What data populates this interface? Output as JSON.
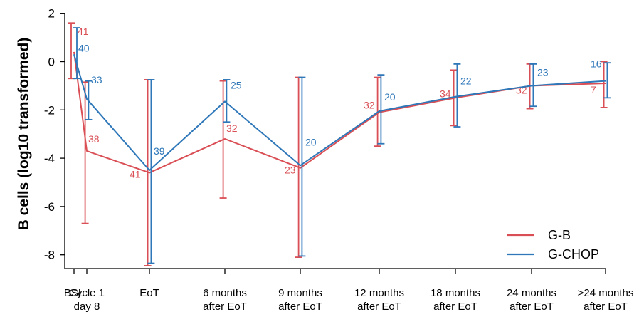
{
  "chart_data": {
    "type": "line",
    "ylabel": "B cells (log10 transformed)",
    "xlabel": "",
    "ylim": [
      -8.7,
      2
    ],
    "yticks": [
      2,
      0,
      -2,
      -4,
      -6,
      -8
    ],
    "categories": [
      [
        "BSL"
      ],
      [
        "Cycle 1",
        "day 8"
      ],
      [
        "EoT"
      ],
      [
        "6 months",
        "after EoT"
      ],
      [
        "9 months",
        "after EoT"
      ],
      [
        "12 months",
        "after EoT"
      ],
      [
        "18 months",
        "after EoT"
      ],
      [
        "24 months",
        "after EoT"
      ],
      [
        ">24 months",
        "after EoT"
      ]
    ],
    "x": [
      0.0,
      0.23,
      1.0,
      2.0,
      3.0,
      4.0,
      5.0,
      6.0,
      7.0
    ],
    "grid": false,
    "legend_position": "bottom-right",
    "series": [
      {
        "name": "G-B",
        "color": "#d94f55",
        "values": [
          0.4,
          -3.7,
          -4.6,
          -3.2,
          -4.4,
          -2.1,
          -1.5,
          -1.0,
          -0.9
        ],
        "lower": [
          -0.7,
          -6.7,
          -8.45,
          -5.65,
          -8.1,
          -3.5,
          -2.65,
          -1.95,
          -1.9
        ],
        "upper": [
          1.6,
          -0.85,
          -0.75,
          -0.8,
          -0.65,
          -0.65,
          -0.35,
          -0.1,
          0.0
        ],
        "n": [
          "41",
          "38",
          "41",
          "32",
          "23",
          "32",
          "34",
          "32",
          "7"
        ]
      },
      {
        "name": "G-CHOP",
        "color": "#2e77b8",
        "values": [
          0.3,
          -1.55,
          -4.5,
          -1.65,
          -4.3,
          -2.05,
          -1.45,
          -1.0,
          -0.8
        ],
        "lower": [
          -0.7,
          -2.4,
          -8.35,
          -2.5,
          -8.05,
          -3.4,
          -2.7,
          -1.85,
          -1.5
        ],
        "upper": [
          1.4,
          -0.8,
          -0.75,
          -0.75,
          -0.65,
          -0.55,
          -0.1,
          -0.1,
          -0.05
        ],
        "n": [
          "40",
          "33",
          "39",
          "25",
          "20",
          "20",
          "22",
          "23",
          "16"
        ]
      }
    ]
  }
}
